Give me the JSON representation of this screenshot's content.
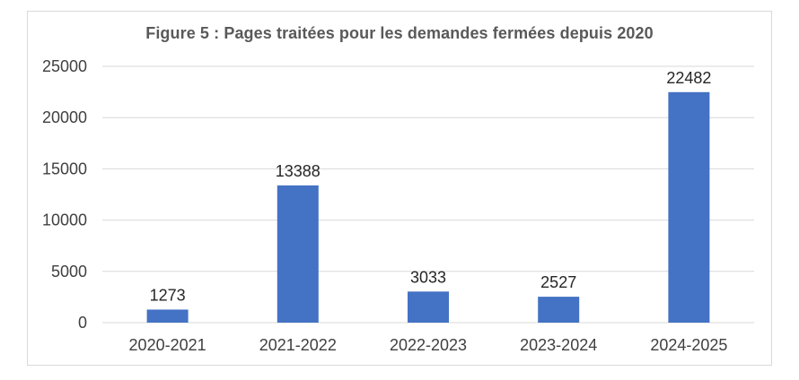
{
  "chart_data": {
    "type": "bar",
    "title": "Figure 5 : Pages traitées pour les demandes fermées depuis 2020",
    "xlabel": "",
    "ylabel": "",
    "categories": [
      "2020-2021",
      "2021-2022",
      "2022-2023",
      "2023-2024",
      "2024-2025"
    ],
    "values": [
      1273,
      13388,
      3033,
      2527,
      22482
    ],
    "ylim": [
      0,
      25000
    ],
    "yticks": [
      0,
      5000,
      10000,
      15000,
      20000,
      25000
    ],
    "grid": true,
    "legend": "none",
    "bar_color": "#4472c4",
    "grid_color": "#d9d9d9"
  }
}
